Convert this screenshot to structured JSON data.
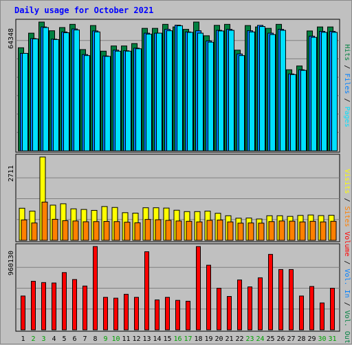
{
  "chart_data": {
    "type": "bar",
    "title": "Daily usage for October 2021",
    "days": [
      "1",
      "2",
      "3",
      "4",
      "5",
      "6",
      "7",
      "8",
      "9",
      "10",
      "11",
      "12",
      "13",
      "14",
      "15",
      "16",
      "17",
      "18",
      "19",
      "20",
      "21",
      "22",
      "23",
      "24",
      "25",
      "26",
      "27",
      "28",
      "29",
      "30",
      "31"
    ],
    "weekend_days": [
      "2",
      "3",
      "9",
      "10",
      "16",
      "17",
      "23",
      "24",
      "30",
      "31"
    ],
    "panels": [
      {
        "id": "top",
        "ymax_label": "64348",
        "ymax": 64348,
        "right_label_parts": [
          {
            "text": "Hits",
            "color": "#008040"
          },
          {
            "text": " / ",
            "color": "#000000"
          },
          {
            "text": "Files",
            "color": "#0080ff"
          },
          {
            "text": " / ",
            "color": "#000000"
          },
          {
            "text": "Pages",
            "color": "#00e0ff"
          }
        ],
        "series": [
          {
            "name": "Hits",
            "color": "#008040",
            "values": [
              51500,
              58800,
              64348,
              60000,
              61600,
              63200,
              50600,
              62600,
              49800,
              52400,
              52400,
              53600,
              61200,
              61200,
              63200,
              61900,
              60700,
              64348,
              57500,
              62700,
              63200,
              50300,
              62600,
              61900,
              61200,
              63200,
              40500,
              42400,
              59900,
              61900,
              61900
            ]
          },
          {
            "name": "Files",
            "color": "#0080ff",
            "values": [
              48700,
              56100,
              61900,
              55800,
              59400,
              60900,
              48100,
              59900,
              47400,
              50300,
              50000,
              51300,
              58800,
              58800,
              60700,
              62800,
              59400,
              60000,
              54900,
              60200,
              60700,
              48400,
              60000,
              62700,
              58800,
              60700,
              38400,
              40500,
              57300,
              59700,
              59700
            ]
          },
          {
            "name": "Pages",
            "color": "#00e0ff",
            "values": [
              48700,
              55900,
              61600,
              55600,
              59000,
              60400,
              47600,
              59400,
              47200,
              49800,
              49800,
              51000,
              58300,
              58800,
              60000,
              62500,
              59200,
              58800,
              54300,
              59900,
              60200,
              47600,
              59400,
              62100,
              58100,
              60200,
              38100,
              40200,
              56700,
              59200,
              59200
            ]
          }
        ]
      },
      {
        "id": "middle",
        "ymax_label": "2711",
        "ymax": 2711,
        "right_label_parts": [
          {
            "text": "Visits",
            "color": "#ffff00"
          },
          {
            "text": " / ",
            "color": "#000000"
          },
          {
            "text": "Sites",
            "color": "#ff8000"
          }
        ],
        "series": [
          {
            "name": "Visits",
            "color": "#ffff00",
            "values": [
              1045,
              950,
              2711,
              1145,
              1190,
              1025,
              1005,
              975,
              1100,
              1070,
              900,
              885,
              1060,
              1060,
              1050,
              980,
              935,
              935,
              950,
              880,
              800,
              720,
              725,
              695,
              800,
              800,
              780,
              810,
              825,
              805,
              815
            ]
          },
          {
            "name": "Sites",
            "color": "#ff8000",
            "values": [
              665,
              565,
              1245,
              685,
              640,
              630,
              605,
              610,
              615,
              610,
              590,
              570,
              680,
              670,
              650,
              630,
              620,
              600,
              650,
              660,
              600,
              560,
              565,
              560,
              610,
              630,
              625,
              600,
              620,
              600,
              620
            ]
          }
        ]
      },
      {
        "id": "bottom",
        "ymax_label": "960130",
        "ymax": 960130,
        "right_label_parts": [
          {
            "text": "Volume",
            "color": "#ff0000"
          },
          {
            "text": " / ",
            "color": "#000000"
          },
          {
            "text": "Vol. In",
            "color": "#0080ff"
          },
          {
            "text": " / ",
            "color": "#000000"
          },
          {
            "text": "Vol. Out",
            "color": "#008040"
          }
        ],
        "series": [
          {
            "name": "Volume",
            "color": "#ff0000",
            "values": [
              390000,
              560000,
              545000,
              540000,
              660000,
              580000,
              505000,
              960130,
              375000,
              365000,
              410000,
              375000,
              900000,
              345000,
              375000,
              340000,
              330000,
              960130,
              745000,
              480000,
              385000,
              575000,
              495000,
              600000,
              870000,
              695000,
              695000,
              390000,
              500000,
              310000,
              480000
            ]
          }
        ]
      }
    ]
  },
  "colors": {
    "background": "#c0c0c0",
    "title": "#0000ff",
    "weekday_label": "#000000",
    "weekend_label": "#00a000",
    "gridline": "#808080",
    "bar_outline": "#000000"
  }
}
